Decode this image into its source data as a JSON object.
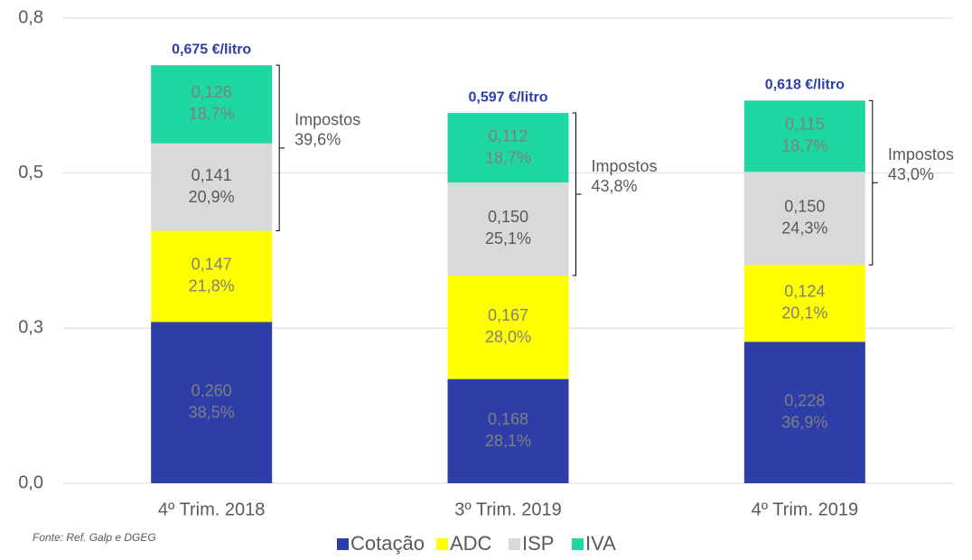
{
  "chart_data": {
    "type": "stacked_bar",
    "categories": [
      "4º Trim. 2018",
      "3º Trim. 2019",
      "4º Trim. 2019"
    ],
    "series": [
      {
        "name": "Cotação",
        "color": "#2d3ea8",
        "label_color": "#7f7f7f",
        "values": [
          0.26,
          0.168,
          0.228
        ],
        "value_labels": [
          "0,260",
          "0,168",
          "0,228"
        ],
        "shares": [
          38.5,
          28.1,
          36.9
        ],
        "share_labels": [
          "38,5%",
          "28,1%",
          "36,9%"
        ]
      },
      {
        "name": "ADC",
        "color": "#ffff00",
        "label_color": "#7f7f7f",
        "values": [
          0.147,
          0.167,
          0.124
        ],
        "value_labels": [
          "0,147",
          "0,167",
          "0,124"
        ],
        "shares": [
          21.8,
          28.0,
          20.1
        ],
        "share_labels": [
          "21,8%",
          "28,0%",
          "20,1%"
        ]
      },
      {
        "name": "ISP",
        "color": "#d9d9d9",
        "label_color": "#595959",
        "values": [
          0.141,
          0.15,
          0.15
        ],
        "value_labels": [
          "0,141",
          "0,150",
          "0,150"
        ],
        "shares": [
          20.9,
          25.1,
          24.3
        ],
        "share_labels": [
          "20,9%",
          "25,1%",
          "24,3%"
        ]
      },
      {
        "name": "IVA",
        "color": "#1fd7a0",
        "label_color": "#7f7f7f",
        "values": [
          0.126,
          0.112,
          0.115
        ],
        "value_labels": [
          "0,126",
          "0,112",
          "0,115"
        ],
        "shares": [
          18.7,
          18.7,
          18.7
        ],
        "share_labels": [
          "18,7%",
          "18,7%",
          "18,7%"
        ]
      }
    ],
    "totals": [
      0.675,
      0.597,
      0.618
    ],
    "total_labels": [
      "0,675 €/litro",
      "0,597 €/litro",
      "0,618 €/litro"
    ],
    "total_color": "#2d3ea8",
    "tax_label": "Impostos",
    "tax_shares": [
      39.6,
      43.8,
      43.0
    ],
    "tax_share_labels": [
      "39,6%",
      "43,8%",
      "43,0%"
    ],
    "ylim": [
      0,
      0.75
    ],
    "yticks": [
      {
        "value": 0,
        "label": "0,0"
      },
      {
        "value": 0.25,
        "label": "0,3"
      },
      {
        "value": 0.5,
        "label": "0,5"
      },
      {
        "value": 0.75,
        "label": "0,8"
      }
    ],
    "grid": true,
    "source": "Fonte: Ref. Galp e DGEG"
  }
}
